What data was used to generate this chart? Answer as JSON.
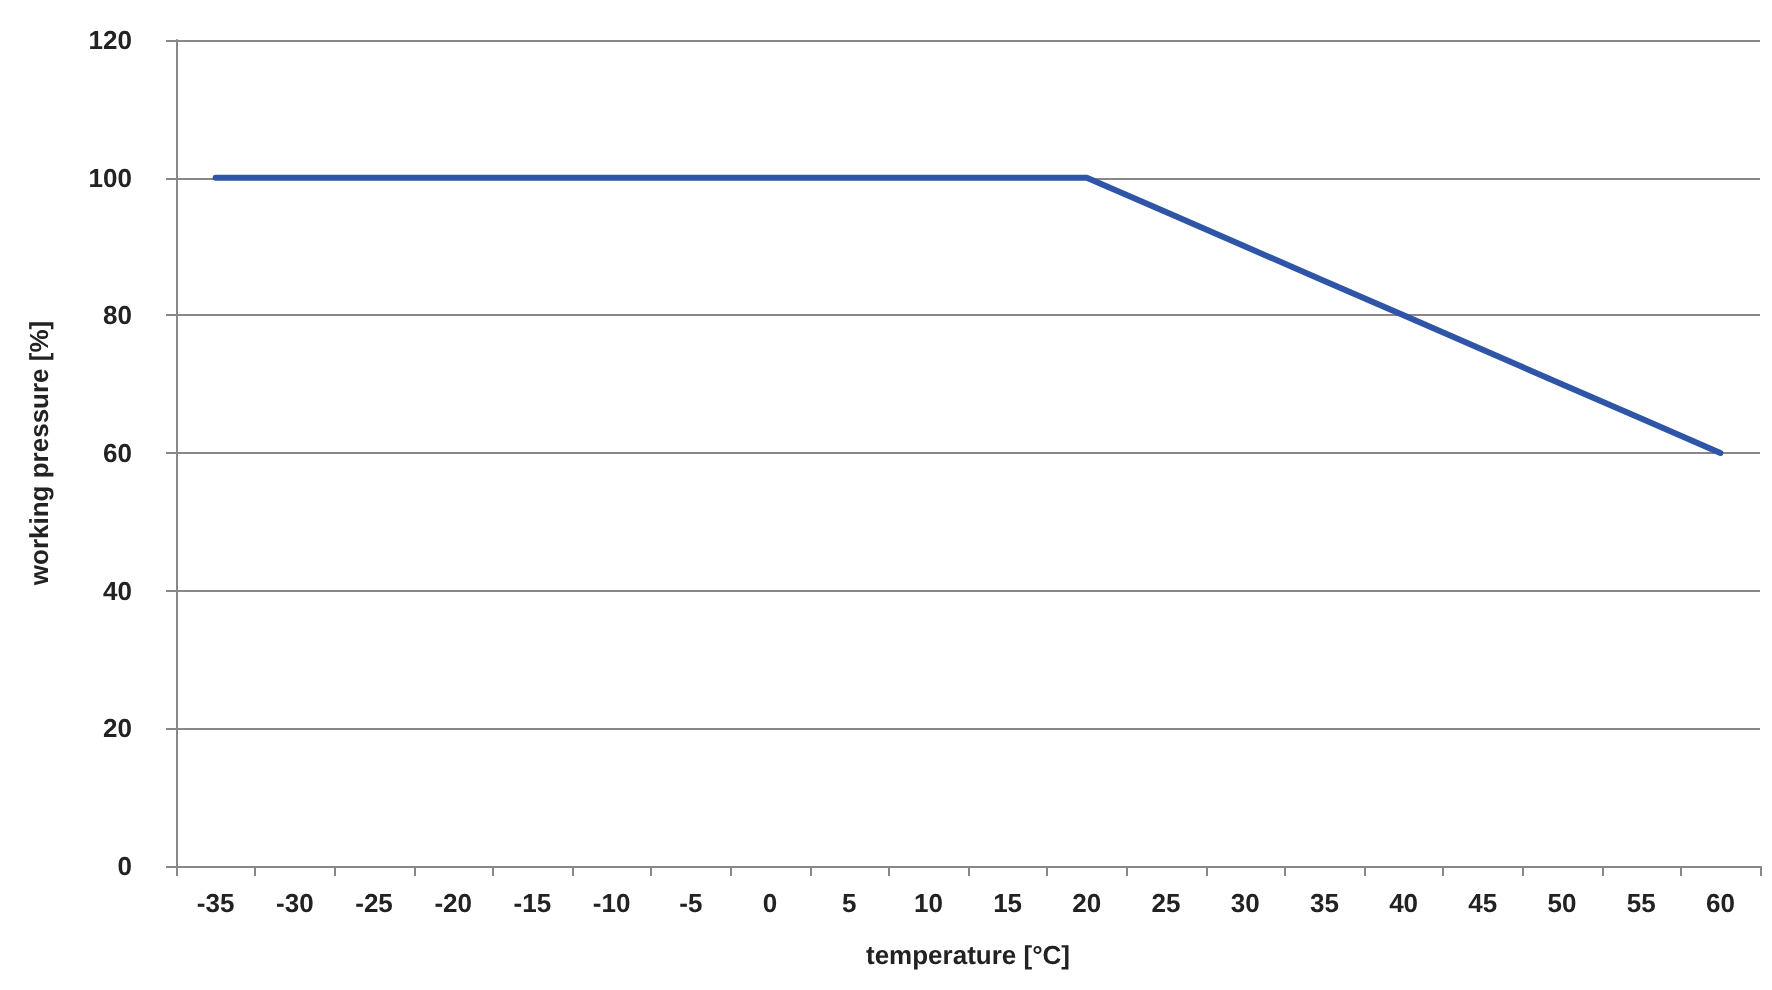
{
  "chart_data": {
    "type": "line",
    "xlabel": "temperature [°C]",
    "ylabel": "working pressure [%]",
    "categories": [
      "-35",
      "-30",
      "-25",
      "-20",
      "-15",
      "-10",
      "-5",
      "0",
      "5",
      "10",
      "15",
      "20",
      "25",
      "30",
      "35",
      "40",
      "45",
      "50",
      "55",
      "60"
    ],
    "series": [
      {
        "color": "#2e55a6",
        "values": [
          100,
          100,
          100,
          100,
          100,
          100,
          100,
          100,
          100,
          100,
          100,
          100,
          95,
          90,
          85,
          80,
          75,
          70,
          65,
          60
        ]
      }
    ],
    "ylim": [
      0,
      120
    ],
    "yticks": [
      0,
      20,
      40,
      60,
      80,
      100,
      120
    ],
    "grid": "y",
    "marker": "none",
    "line_style": "solid"
  }
}
